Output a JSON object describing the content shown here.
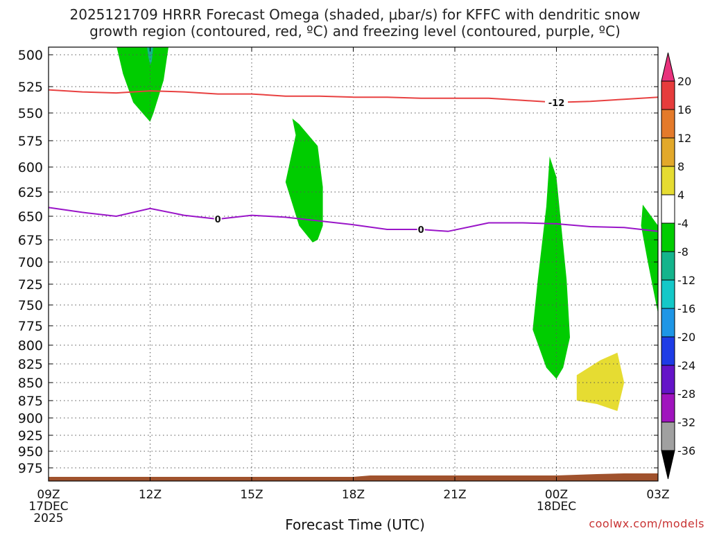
{
  "chart_data": {
    "type": "heatmap",
    "title_line1": "2025121709 HRRR Forecast Omega (shaded, μbar/s) for KFFC with dendritic snow",
    "title_line2": "growth region (contoured, red, ºC) and freezing level (contoured, purple, ºC)",
    "xlabel": "Forecast Time (UTC)",
    "credit": "coolwx.com/models",
    "x_ticks": [
      {
        "hour": 0,
        "label": "09Z",
        "sub1": "17DEC",
        "sub2": "2025"
      },
      {
        "hour": 3,
        "label": "12Z",
        "sub1": "",
        "sub2": ""
      },
      {
        "hour": 6,
        "label": "15Z",
        "sub1": "",
        "sub2": ""
      },
      {
        "hour": 9,
        "label": "18Z",
        "sub1": "",
        "sub2": ""
      },
      {
        "hour": 12,
        "label": "21Z",
        "sub1": "",
        "sub2": ""
      },
      {
        "hour": 15,
        "label": "00Z",
        "sub1": "18DEC",
        "sub2": ""
      },
      {
        "hour": 18,
        "label": "03Z",
        "sub1": "",
        "sub2": ""
      }
    ],
    "xlim": [
      0,
      18
    ],
    "y_ticks": [
      500,
      525,
      550,
      575,
      600,
      625,
      650,
      675,
      700,
      725,
      750,
      775,
      800,
      825,
      850,
      875,
      900,
      925,
      950,
      975
    ],
    "ylim": [
      492,
      1000
    ],
    "colorbar": {
      "labels": [
        "20",
        "16",
        "12",
        "8",
        "4",
        "-4",
        "-8",
        "-12",
        "-16",
        "-20",
        "-24",
        "-28",
        "-32",
        "-36"
      ],
      "colors": [
        "#e8327c",
        "#e63c3c",
        "#e47a2a",
        "#e2a82a",
        "#e6dc32",
        "#ffffff",
        "#00cc00",
        "#14b48c",
        "#14c8c8",
        "#1e96e6",
        "#1e3ce6",
        "#6414c8",
        "#a014be",
        "#a0a0a0",
        "#000000"
      ]
    },
    "omega_regions": [
      {
        "name": "green-top-21z",
        "color": "#00cc00",
        "points": [
          [
            11.0,
            490
          ],
          [
            12.55,
            490
          ],
          [
            12.4,
            520
          ],
          [
            12.1,
            550
          ],
          [
            12.0,
            558
          ],
          [
            11.5,
            540
          ],
          [
            11.2,
            515
          ]
        ]
      },
      {
        "name": "teal-top-21z",
        "color": "#14b48c",
        "points": [
          [
            11.9,
            490
          ],
          [
            12.1,
            490
          ],
          [
            12.05,
            505
          ],
          [
            12.0,
            508
          ],
          [
            11.95,
            502
          ]
        ]
      },
      {
        "name": "green-mid-1630z",
        "color": "#00cc00",
        "points": [
          [
            16.2,
            555
          ],
          [
            16.4,
            560
          ],
          [
            16.95,
            580
          ],
          [
            17.1,
            620
          ],
          [
            17.1,
            660
          ],
          [
            16.95,
            675
          ],
          [
            16.8,
            678
          ],
          [
            16.4,
            660
          ],
          [
            16.0,
            615
          ],
          [
            16.3,
            570
          ]
        ]
      },
      {
        "name": "green-tall-2330z",
        "color": "#00cc00",
        "points": [
          [
            23.8,
            590
          ],
          [
            24.0,
            610
          ],
          [
            24.3,
            720
          ],
          [
            24.4,
            790
          ],
          [
            24.2,
            830
          ],
          [
            24.0,
            845
          ],
          [
            23.7,
            830
          ],
          [
            23.3,
            780
          ],
          [
            23.45,
            720
          ],
          [
            23.7,
            640
          ]
        ]
      },
      {
        "name": "green-right-02z",
        "color": "#00cc00",
        "points": [
          [
            26.55,
            638
          ],
          [
            26.8,
            650
          ],
          [
            27.4,
            680
          ],
          [
            27.95,
            710
          ],
          [
            27.95,
            762
          ],
          [
            27.0,
            760
          ],
          [
            26.7,
            700
          ],
          [
            26.5,
            660
          ]
        ]
      },
      {
        "name": "yellow-01z",
        "color": "#e6dc32",
        "points": [
          [
            24.6,
            840
          ],
          [
            25.3,
            820
          ],
          [
            25.8,
            810
          ],
          [
            26.0,
            850
          ],
          [
            25.8,
            890
          ],
          [
            25.2,
            880
          ],
          [
            24.6,
            875
          ],
          [
            24.6,
            860
          ]
        ]
      }
    ],
    "contours": [
      {
        "name": "dgz-minus12",
        "color": "#e84040",
        "label": "-12",
        "label_hour": 15.0,
        "points": [
          [
            0,
            528
          ],
          [
            1,
            530
          ],
          [
            2,
            531
          ],
          [
            3,
            529
          ],
          [
            4,
            530
          ],
          [
            5,
            532
          ],
          [
            6,
            532
          ],
          [
            7,
            534
          ],
          [
            8,
            534
          ],
          [
            9,
            535
          ],
          [
            10,
            535
          ],
          [
            11,
            536
          ],
          [
            12,
            536
          ],
          [
            13,
            536
          ],
          [
            14,
            538
          ],
          [
            15,
            540
          ],
          [
            16,
            539
          ],
          [
            17,
            537
          ],
          [
            18,
            535
          ]
        ]
      },
      {
        "name": "freezing-level-0",
        "color": "#9914c8",
        "label": "0",
        "label_hour": 5.0,
        "label2_hour": 11.0,
        "points": [
          [
            0,
            641
          ],
          [
            1,
            646
          ],
          [
            2,
            650
          ],
          [
            3,
            642
          ],
          [
            4,
            649
          ],
          [
            5,
            653
          ],
          [
            6,
            649
          ],
          [
            7,
            651
          ],
          [
            8,
            655
          ],
          [
            9,
            659
          ],
          [
            10,
            664
          ],
          [
            11,
            664
          ],
          [
            11.8,
            666
          ],
          [
            12.6,
            660
          ],
          [
            13,
            657
          ],
          [
            14,
            657
          ],
          [
            15,
            658
          ],
          [
            16,
            661
          ],
          [
            17,
            662
          ],
          [
            18,
            666
          ]
        ]
      }
    ]
  }
}
